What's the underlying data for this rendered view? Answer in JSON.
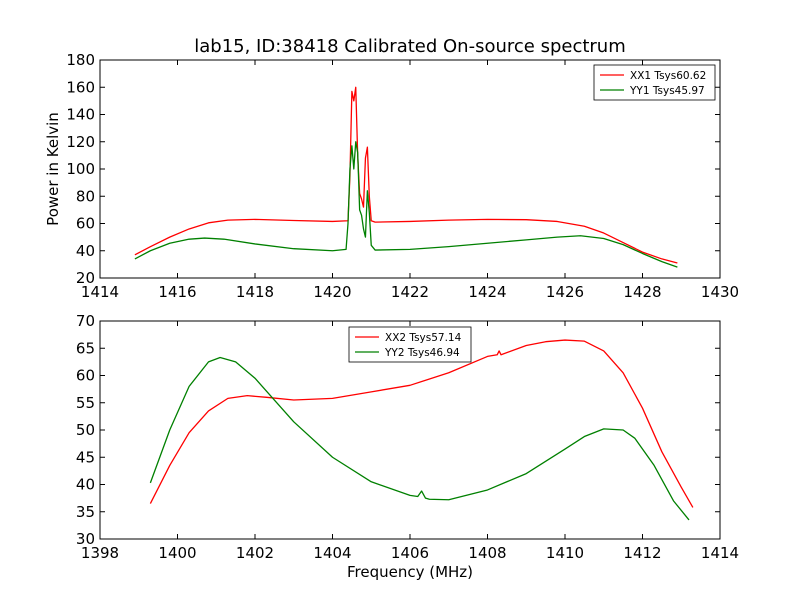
{
  "chart_data": [
    {
      "type": "line",
      "title": "lab15, ID:38418 Calibrated On-source spectrum",
      "xlabel": "",
      "ylabel": "Power in Kelvin",
      "xlim": [
        1414,
        1430
      ],
      "ylim": [
        20,
        180
      ],
      "x_ticks": [
        1414,
        1416,
        1418,
        1420,
        1422,
        1424,
        1426,
        1428,
        1430
      ],
      "y_ticks": [
        20,
        40,
        60,
        80,
        100,
        120,
        140,
        160,
        180
      ],
      "grid": false,
      "legend_position": "top-right",
      "series": [
        {
          "name": "XX1 Tsys60.62",
          "color": "#ff0000",
          "x": [
            1414.9,
            1415.3,
            1415.8,
            1416.3,
            1416.8,
            1417.3,
            1418.0,
            1419.0,
            1420.0,
            1420.4,
            1420.45,
            1420.5,
            1420.55,
            1420.6,
            1420.65,
            1420.7,
            1420.75,
            1420.8,
            1420.85,
            1420.9,
            1420.95,
            1421.0,
            1421.1,
            1422.0,
            1423.0,
            1424.0,
            1425.0,
            1425.8,
            1426.5,
            1427.0,
            1427.5,
            1428.0,
            1428.5,
            1428.9
          ],
          "y": [
            37,
            43,
            50,
            56,
            60.5,
            62.5,
            63,
            62.2,
            61.5,
            62,
            95,
            157,
            150,
            160,
            110,
            82,
            78,
            72,
            108,
            116,
            80,
            62,
            61,
            61.5,
            62.5,
            63,
            62.8,
            61.5,
            58,
            53,
            46,
            39,
            34,
            31
          ]
        },
        {
          "name": "YY1 Tsys45.97",
          "color": "#008000",
          "x": [
            1414.9,
            1415.3,
            1415.8,
            1416.3,
            1416.7,
            1417.2,
            1418.0,
            1419.0,
            1420.0,
            1420.35,
            1420.4,
            1420.45,
            1420.5,
            1420.55,
            1420.6,
            1420.65,
            1420.7,
            1420.75,
            1420.8,
            1420.85,
            1420.9,
            1420.95,
            1421.0,
            1421.1,
            1422.0,
            1423.0,
            1424.0,
            1425.0,
            1425.8,
            1426.4,
            1427.0,
            1427.5,
            1428.0,
            1428.5,
            1428.9
          ],
          "y": [
            34,
            40,
            45.5,
            48.5,
            49.3,
            48.5,
            45,
            41.5,
            40,
            41,
            60,
            100,
            117,
            100,
            120,
            112,
            70,
            66,
            56,
            50,
            84,
            68,
            44,
            40.5,
            41,
            43,
            45.5,
            48,
            50,
            51,
            49,
            44.5,
            38,
            32,
            28
          ]
        }
      ]
    },
    {
      "type": "line",
      "title": "",
      "xlabel": "Frequency (MHz)",
      "ylabel": "",
      "xlim": [
        1398,
        1414
      ],
      "ylim": [
        30,
        70
      ],
      "x_ticks": [
        1398,
        1400,
        1402,
        1404,
        1406,
        1408,
        1410,
        1412,
        1414
      ],
      "y_ticks": [
        30,
        35,
        40,
        45,
        50,
        55,
        60,
        65,
        70
      ],
      "grid": false,
      "legend_position": "top-center",
      "series": [
        {
          "name": "XX2 Tsys57.14",
          "color": "#ff0000",
          "x": [
            1399.3,
            1399.8,
            1400.3,
            1400.8,
            1401.3,
            1401.8,
            1402.3,
            1403.0,
            1404.0,
            1405.0,
            1406.0,
            1407.0,
            1408.0,
            1408.25,
            1408.3,
            1408.35,
            1409.0,
            1409.5,
            1410.0,
            1410.5,
            1411.0,
            1411.5,
            1412.0,
            1412.5,
            1413.0,
            1413.3
          ],
          "y": [
            36.5,
            43.5,
            49.5,
            53.5,
            55.8,
            56.3,
            56,
            55.5,
            55.8,
            57,
            58.2,
            60.5,
            63.5,
            63.8,
            64.5,
            63.8,
            65.5,
            66.2,
            66.5,
            66.3,
            64.5,
            60.5,
            54,
            46,
            39.5,
            35.8
          ]
        },
        {
          "name": "YY2 Tsys46.94",
          "color": "#008000",
          "x": [
            1399.3,
            1399.8,
            1400.3,
            1400.8,
            1401.1,
            1401.5,
            1402.0,
            1402.5,
            1403.0,
            1404.0,
            1405.0,
            1406.0,
            1406.2,
            1406.3,
            1406.4,
            1406.5,
            1407.0,
            1408.0,
            1408.5,
            1409.0,
            1410.0,
            1410.5,
            1411.0,
            1411.5,
            1411.8,
            1412.3,
            1412.8,
            1413.2
          ],
          "y": [
            40.3,
            50,
            58,
            62.5,
            63.3,
            62.5,
            59.5,
            55.5,
            51.5,
            45,
            40.5,
            38,
            37.8,
            38.8,
            37.5,
            37.3,
            37.2,
            39,
            40.5,
            42,
            46.5,
            48.8,
            50.2,
            50,
            48.5,
            43.5,
            37,
            33.5
          ]
        }
      ]
    }
  ]
}
